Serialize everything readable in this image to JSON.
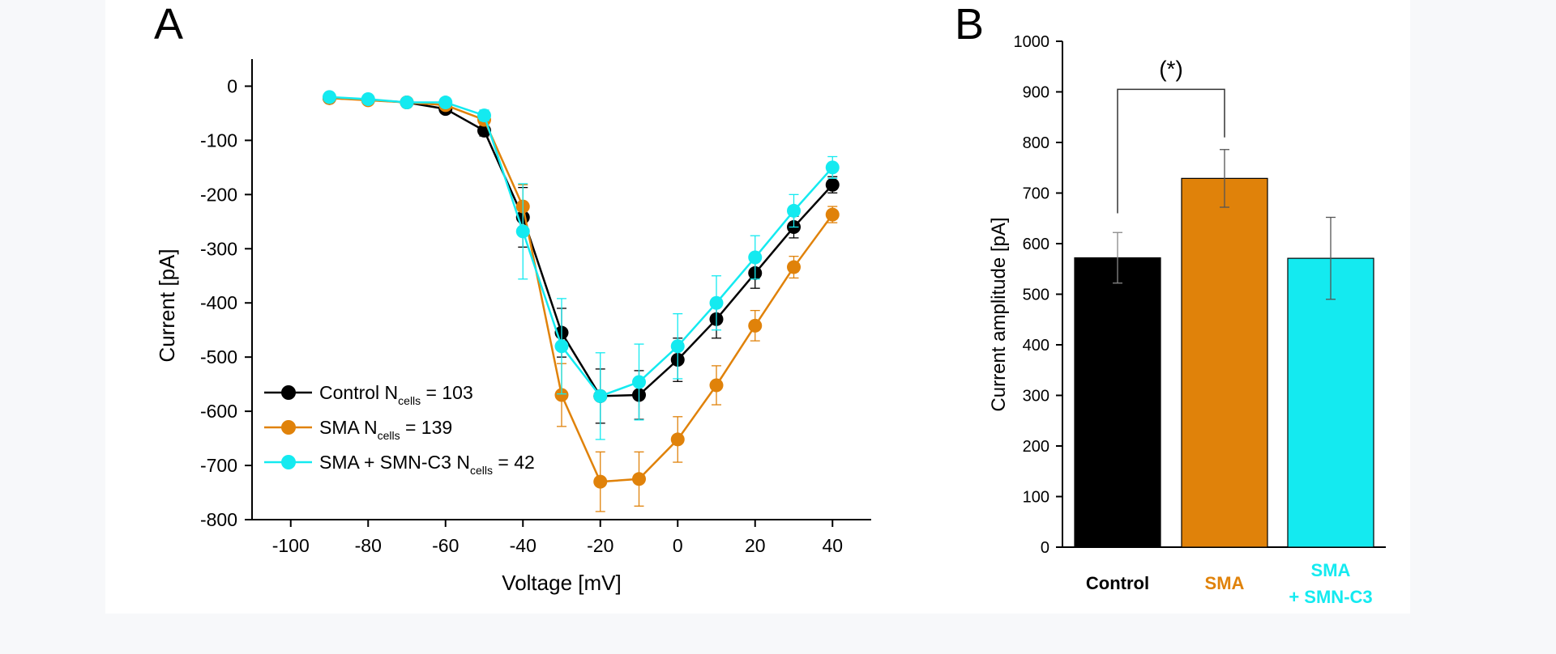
{
  "colors": {
    "control": "#000000",
    "sma": "#e0820a",
    "sma_smn": "#14eaf0",
    "axis": "#000000",
    "figure_bg": "#ffffff",
    "page_bg": "#f7f8fa"
  },
  "panels": {
    "a_label": "A",
    "b_label": "B"
  },
  "chart_data": [
    {
      "panel": "A",
      "type": "line",
      "title": "",
      "xlabel": "Voltage [mV]",
      "ylabel": "Current [pA]",
      "xlim": [
        -110,
        50
      ],
      "ylim": [
        -800,
        50
      ],
      "xticks": [
        -100,
        -80,
        -60,
        -40,
        -20,
        0,
        20,
        40
      ],
      "yticks": [
        0,
        -100,
        -200,
        -300,
        -400,
        -500,
        -600,
        -700,
        -800
      ],
      "x": [
        -90,
        -80,
        -70,
        -60,
        -50,
        -40,
        -30,
        -20,
        -10,
        0,
        10,
        20,
        30,
        40
      ],
      "legend_position": "bottom-left",
      "series": [
        {
          "key": "control",
          "name": "Control N",
          "name_sub": "cells",
          "name_suffix": " = 103",
          "values": [
            -22,
            -25,
            -30,
            -42,
            -82,
            -242,
            -455,
            -572,
            -570,
            -505,
            -430,
            -345,
            -260,
            -182
          ],
          "errors": [
            5,
            5,
            5,
            8,
            10,
            55,
            45,
            50,
            45,
            40,
            35,
            28,
            20,
            15
          ]
        },
        {
          "key": "sma",
          "name": "SMA N",
          "name_sub": "cells",
          "name_suffix": " = 139",
          "values": [
            -22,
            -26,
            -30,
            -35,
            -62,
            -222,
            -570,
            -730,
            -725,
            -652,
            -552,
            -442,
            -334,
            -237
          ],
          "errors": [
            5,
            5,
            5,
            8,
            10,
            40,
            58,
            55,
            50,
            42,
            36,
            28,
            20,
            15
          ]
        },
        {
          "key": "sma_smn",
          "name": "SMA + SMN-C3 N",
          "name_sub": "cells",
          "name_suffix": " = 42",
          "values": [
            -20,
            -24,
            -30,
            -30,
            -54,
            -268,
            -480,
            -572,
            -546,
            -480,
            -400,
            -316,
            -230,
            -150
          ],
          "errors": [
            5,
            5,
            5,
            8,
            10,
            88,
            88,
            80,
            70,
            60,
            50,
            40,
            30,
            20
          ]
        }
      ]
    },
    {
      "panel": "B",
      "type": "bar",
      "title": "",
      "xlabel": "",
      "ylabel": "Current amplitude [pA]",
      "ylim": [
        0,
        1000
      ],
      "yticks": [
        0,
        100,
        200,
        300,
        400,
        500,
        600,
        700,
        800,
        900,
        1000
      ],
      "categories": [
        {
          "key": "control",
          "lines": [
            "Control"
          ]
        },
        {
          "key": "sma",
          "lines": [
            "SMA"
          ]
        },
        {
          "key": "sma_smn",
          "lines": [
            "SMA",
            "+ SMN-C3"
          ]
        }
      ],
      "values": [
        572,
        729,
        571
      ],
      "errors": [
        50,
        57,
        81
      ],
      "significance": {
        "from": 0,
        "to": 1,
        "label": "(*)",
        "y": 905
      }
    }
  ]
}
